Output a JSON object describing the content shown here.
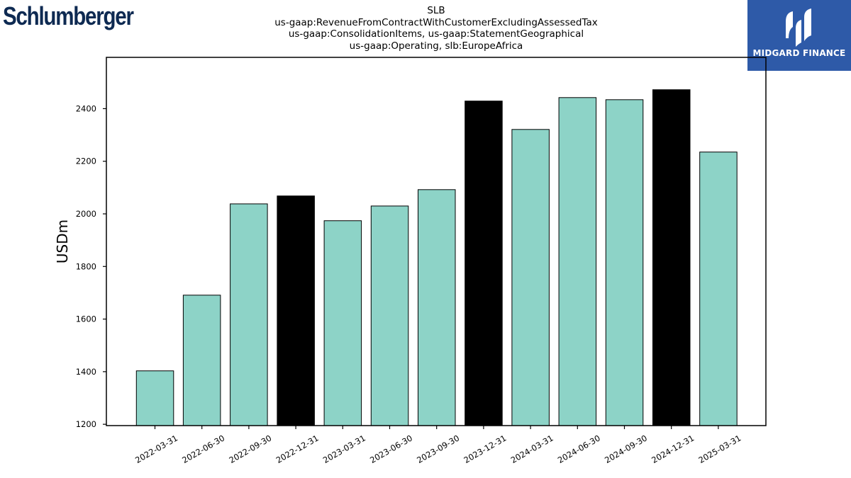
{
  "header": {
    "company_logo_text": "Schlumberger",
    "brand_logo_text": "MIDGARD FINANCE"
  },
  "colors": {
    "bar_quarter": "#8dd3c7",
    "bar_year_end": "#000000",
    "logo_left": "#0e2a52",
    "logo_right_bg": "#2e5aa8"
  },
  "chart_data": {
    "type": "bar",
    "title_lines": [
      "SLB",
      "us-gaap:RevenueFromContractWithCustomerExcludingAssessedTax",
      "us-gaap:ConsolidationItems, us-gaap:StatementGeographical",
      "us-gaap:Operating, slb:EuropeAfrica"
    ],
    "xlabel": "",
    "ylabel": "USDm",
    "ylim": [
      1195,
      2595
    ],
    "yticks": [
      1200,
      1400,
      1600,
      1800,
      2000,
      2200,
      2400
    ],
    "categories": [
      "2022-03-31",
      "2022-06-30",
      "2022-09-30",
      "2022-12-31",
      "2023-03-31",
      "2023-06-30",
      "2023-09-30",
      "2023-12-31",
      "2024-03-31",
      "2024-06-30",
      "2024-09-30",
      "2024-12-31",
      "2025-03-31"
    ],
    "values": [
      1403,
      1691,
      2038,
      2068,
      1974,
      2030,
      2092,
      2429,
      2321,
      2442,
      2434,
      2472,
      2235
    ],
    "highlight": [
      false,
      false,
      false,
      true,
      false,
      false,
      false,
      true,
      false,
      false,
      false,
      true,
      false
    ],
    "grid": false,
    "legend": "none"
  }
}
